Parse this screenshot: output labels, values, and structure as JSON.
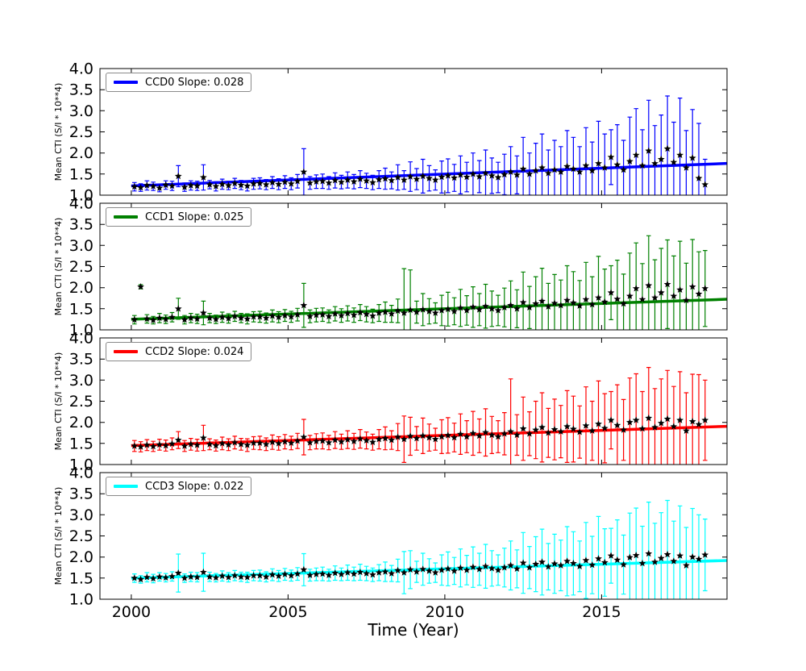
{
  "figure": {
    "xlabel": "Time (Year)",
    "ylabel": "Mean CTI (S/I * 10**4)",
    "background": "#ffffff",
    "axis_color": "#000000",
    "xlim": [
      1999,
      2019
    ],
    "ylim": [
      1.0,
      4.0
    ],
    "x_ticks": [
      2000,
      2005,
      2010,
      2015
    ],
    "y_ticks": [
      4.0,
      3.5,
      3.0,
      2.5,
      2.0,
      1.5,
      1.0
    ],
    "grid": "off",
    "legend_position": "upper-left",
    "marker": "star",
    "marker_color": "#000000"
  },
  "chart_data": [
    {
      "type": "scatter",
      "name": "CCD0",
      "legend": "CCD0 Slope: 0.028",
      "color": "#0000ff",
      "slope": 0.028,
      "intercept_at_2000": 1.22,
      "trend_x_range": [
        2000.0,
        2019.0
      ],
      "x_start": 2000.1,
      "x_step": 0.2,
      "values": [
        1.2,
        1.18,
        1.23,
        1.21,
        1.17,
        1.24,
        1.22,
        1.45,
        1.19,
        1.23,
        1.22,
        1.42,
        1.25,
        1.21,
        1.26,
        1.23,
        1.28,
        1.24,
        1.22,
        1.27,
        1.28,
        1.25,
        1.3,
        1.26,
        1.31,
        1.27,
        1.33,
        1.55,
        1.29,
        1.32,
        1.33,
        1.29,
        1.35,
        1.31,
        1.36,
        1.32,
        1.38,
        1.34,
        1.3,
        1.37,
        1.39,
        1.35,
        1.42,
        1.36,
        1.44,
        1.38,
        1.45,
        1.4,
        1.36,
        1.43,
        1.46,
        1.41,
        1.48,
        1.43,
        1.5,
        1.44,
        1.52,
        1.46,
        1.42,
        1.49,
        1.55,
        1.48,
        1.62,
        1.5,
        1.58,
        1.65,
        1.52,
        1.6,
        1.55,
        1.68,
        1.62,
        1.55,
        1.7,
        1.58,
        1.75,
        1.65,
        1.9,
        1.72,
        1.6,
        1.8,
        1.95,
        1.7,
        2.05,
        1.75,
        1.85,
        2.1,
        1.78,
        1.95,
        1.65,
        1.88,
        1.4,
        1.25
      ],
      "errors": [
        0.1,
        0.09,
        0.11,
        0.1,
        0.09,
        0.1,
        0.11,
        0.25,
        0.1,
        0.11,
        0.11,
        0.3,
        0.1,
        0.11,
        0.12,
        0.1,
        0.12,
        0.11,
        0.12,
        0.13,
        0.13,
        0.12,
        0.14,
        0.13,
        0.15,
        0.14,
        0.16,
        0.55,
        0.15,
        0.16,
        0.17,
        0.15,
        0.18,
        0.16,
        0.19,
        0.17,
        0.2,
        0.18,
        0.17,
        0.21,
        0.25,
        0.2,
        0.3,
        0.22,
        0.35,
        0.25,
        0.4,
        0.3,
        0.24,
        0.38,
        0.4,
        0.32,
        0.45,
        0.35,
        0.5,
        0.38,
        0.55,
        0.42,
        0.36,
        0.48,
        0.6,
        0.45,
        0.75,
        0.5,
        0.65,
        0.8,
        0.55,
        0.7,
        0.6,
        0.85,
        0.75,
        0.6,
        0.9,
        0.68,
        1.0,
        0.8,
        0.65,
        0.95,
        0.7,
        1.05,
        1.1,
        0.85,
        1.2,
        0.9,
        1.05,
        1.25,
        0.95,
        1.35,
        0.88,
        1.15,
        1.3,
        0.6
      ]
    },
    {
      "type": "scatter",
      "name": "CCD1",
      "legend": "CCD1 Slope: 0.025",
      "color": "#008000",
      "slope": 0.025,
      "intercept_at_2000": 1.25,
      "trend_x_range": [
        2000.0,
        2019.0
      ],
      "x_start": 2000.1,
      "x_step": 0.2,
      "values": [
        1.24,
        2.02,
        1.26,
        1.23,
        1.28,
        1.25,
        1.3,
        1.5,
        1.24,
        1.28,
        1.26,
        1.4,
        1.28,
        1.25,
        1.3,
        1.27,
        1.32,
        1.28,
        1.26,
        1.31,
        1.31,
        1.28,
        1.33,
        1.3,
        1.34,
        1.31,
        1.36,
        1.58,
        1.32,
        1.35,
        1.36,
        1.32,
        1.38,
        1.34,
        1.39,
        1.35,
        1.41,
        1.37,
        1.33,
        1.4,
        1.42,
        1.38,
        1.45,
        1.4,
        1.47,
        1.42,
        1.48,
        1.44,
        1.4,
        1.46,
        1.49,
        1.44,
        1.52,
        1.46,
        1.54,
        1.48,
        1.56,
        1.5,
        1.46,
        1.53,
        1.58,
        1.5,
        1.65,
        1.53,
        1.62,
        1.68,
        1.55,
        1.63,
        1.58,
        1.7,
        1.64,
        1.57,
        1.72,
        1.6,
        1.76,
        1.66,
        1.88,
        1.73,
        1.62,
        1.8,
        1.98,
        1.72,
        2.05,
        1.76,
        1.88,
        2.08,
        1.8,
        1.95,
        1.7,
        2.02,
        1.85,
        1.98
      ],
      "errors": [
        0.1,
        0.05,
        0.1,
        0.09,
        0.11,
        0.1,
        0.11,
        0.25,
        0.1,
        0.11,
        0.11,
        0.28,
        0.11,
        0.1,
        0.12,
        0.11,
        0.12,
        0.11,
        0.12,
        0.12,
        0.13,
        0.12,
        0.14,
        0.13,
        0.14,
        0.13,
        0.15,
        0.52,
        0.15,
        0.16,
        0.16,
        0.15,
        0.17,
        0.16,
        0.18,
        0.17,
        0.19,
        0.18,
        0.16,
        0.2,
        0.24,
        0.2,
        0.28,
        1.05,
        0.95,
        0.26,
        0.38,
        0.3,
        0.24,
        0.36,
        0.4,
        0.32,
        0.44,
        0.35,
        0.48,
        0.38,
        0.52,
        0.42,
        0.36,
        0.46,
        0.58,
        0.45,
        0.72,
        0.5,
        0.64,
        0.78,
        0.55,
        0.68,
        0.6,
        0.82,
        0.74,
        0.6,
        0.88,
        0.66,
        0.98,
        0.78,
        0.64,
        0.92,
        0.7,
        1.02,
        1.08,
        0.85,
        1.18,
        0.9,
        1.05,
        1.05,
        0.95,
        1.15,
        0.88,
        1.12,
        1.0,
        0.9
      ]
    },
    {
      "type": "scatter",
      "name": "CCD2",
      "legend": "CCD2 Slope: 0.024",
      "color": "#ff0000",
      "slope": 0.024,
      "intercept_at_2000": 1.45,
      "trend_x_range": [
        2000.0,
        2019.0
      ],
      "x_start": 2000.1,
      "x_step": 0.2,
      "values": [
        1.44,
        1.42,
        1.46,
        1.43,
        1.47,
        1.45,
        1.49,
        1.58,
        1.44,
        1.48,
        1.46,
        1.63,
        1.48,
        1.45,
        1.5,
        1.47,
        1.52,
        1.48,
        1.46,
        1.51,
        1.51,
        1.48,
        1.53,
        1.5,
        1.54,
        1.51,
        1.56,
        1.65,
        1.52,
        1.55,
        1.56,
        1.52,
        1.58,
        1.54,
        1.59,
        1.55,
        1.61,
        1.57,
        1.53,
        1.6,
        1.62,
        1.58,
        1.65,
        1.6,
        1.67,
        1.62,
        1.68,
        1.64,
        1.6,
        1.66,
        1.69,
        1.64,
        1.72,
        1.66,
        1.74,
        1.68,
        1.76,
        1.7,
        1.66,
        1.73,
        1.78,
        1.7,
        1.85,
        1.73,
        1.82,
        1.88,
        1.75,
        1.83,
        1.78,
        1.9,
        1.84,
        1.77,
        1.92,
        1.8,
        1.96,
        1.86,
        2.05,
        1.93,
        1.82,
        2.0,
        2.05,
        1.85,
        2.1,
        1.88,
        1.98,
        2.08,
        1.9,
        2.05,
        1.8,
        2.02,
        1.95,
        2.05
      ],
      "errors": [
        0.13,
        0.12,
        0.13,
        0.12,
        0.13,
        0.13,
        0.14,
        0.2,
        0.13,
        0.14,
        0.14,
        0.3,
        0.13,
        0.13,
        0.15,
        0.14,
        0.15,
        0.14,
        0.15,
        0.15,
        0.16,
        0.15,
        0.17,
        0.16,
        0.17,
        0.16,
        0.18,
        0.42,
        0.17,
        0.18,
        0.19,
        0.17,
        0.2,
        0.18,
        0.21,
        0.19,
        0.22,
        0.2,
        0.19,
        0.23,
        0.27,
        0.22,
        0.32,
        0.55,
        0.45,
        0.28,
        0.42,
        0.32,
        0.26,
        0.4,
        0.42,
        0.34,
        0.48,
        0.38,
        0.52,
        0.4,
        0.56,
        0.44,
        0.38,
        0.5,
        1.25,
        0.48,
        0.75,
        0.52,
        0.68,
        0.82,
        0.58,
        0.72,
        0.62,
        0.85,
        0.78,
        0.62,
        0.92,
        0.7,
        1.02,
        0.82,
        0.68,
        0.96,
        0.72,
        1.05,
        1.1,
        0.88,
        1.2,
        0.92,
        1.05,
        1.15,
        0.95,
        1.15,
        0.9,
        1.12,
        1.18,
        0.95
      ]
    },
    {
      "type": "scatter",
      "name": "CCD3",
      "legend": "CCD3 Slope: 0.022",
      "color": "#00ffff",
      "slope": 0.022,
      "intercept_at_2000": 1.5,
      "trend_x_range": [
        2000.0,
        2019.0
      ],
      "x_start": 2000.1,
      "x_step": 0.2,
      "values": [
        1.5,
        1.47,
        1.52,
        1.49,
        1.53,
        1.51,
        1.54,
        1.62,
        1.5,
        1.53,
        1.52,
        1.64,
        1.53,
        1.51,
        1.55,
        1.52,
        1.56,
        1.53,
        1.52,
        1.56,
        1.56,
        1.53,
        1.58,
        1.55,
        1.59,
        1.56,
        1.6,
        1.7,
        1.57,
        1.59,
        1.6,
        1.57,
        1.62,
        1.59,
        1.63,
        1.6,
        1.64,
        1.61,
        1.58,
        1.63,
        1.65,
        1.61,
        1.68,
        1.63,
        1.7,
        1.65,
        1.71,
        1.67,
        1.63,
        1.69,
        1.72,
        1.67,
        1.74,
        1.69,
        1.76,
        1.71,
        1.78,
        1.73,
        1.69,
        1.75,
        1.8,
        1.72,
        1.86,
        1.75,
        1.83,
        1.88,
        1.77,
        1.84,
        1.8,
        1.9,
        1.85,
        1.78,
        1.92,
        1.81,
        1.96,
        1.87,
        2.03,
        1.93,
        1.82,
        1.99,
        2.04,
        1.85,
        2.08,
        1.88,
        1.97,
        2.06,
        1.9,
        2.03,
        1.8,
        2.0,
        1.95,
        2.05
      ],
      "errors": [
        0.1,
        0.09,
        0.11,
        0.1,
        0.1,
        0.1,
        0.11,
        0.45,
        0.1,
        0.11,
        0.11,
        0.45,
        0.11,
        0.1,
        0.12,
        0.11,
        0.12,
        0.11,
        0.12,
        0.12,
        0.13,
        0.12,
        0.14,
        0.13,
        0.14,
        0.13,
        0.15,
        0.38,
        0.14,
        0.15,
        0.16,
        0.14,
        0.17,
        0.15,
        0.18,
        0.16,
        0.19,
        0.17,
        0.16,
        0.19,
        0.23,
        0.19,
        0.27,
        0.5,
        0.45,
        0.25,
        0.38,
        0.29,
        0.23,
        0.36,
        0.4,
        0.32,
        0.45,
        0.35,
        0.48,
        0.38,
        0.52,
        0.42,
        0.36,
        0.46,
        0.58,
        0.45,
        0.72,
        0.5,
        0.65,
        0.78,
        0.55,
        0.7,
        0.6,
        0.82,
        0.75,
        0.6,
        0.9,
        0.68,
        1.0,
        0.8,
        0.65,
        0.95,
        0.7,
        1.05,
        1.12,
        0.88,
        1.22,
        0.92,
        1.08,
        1.28,
        0.95,
        1.18,
        0.9,
        1.15,
        1.05,
        0.85
      ]
    }
  ]
}
